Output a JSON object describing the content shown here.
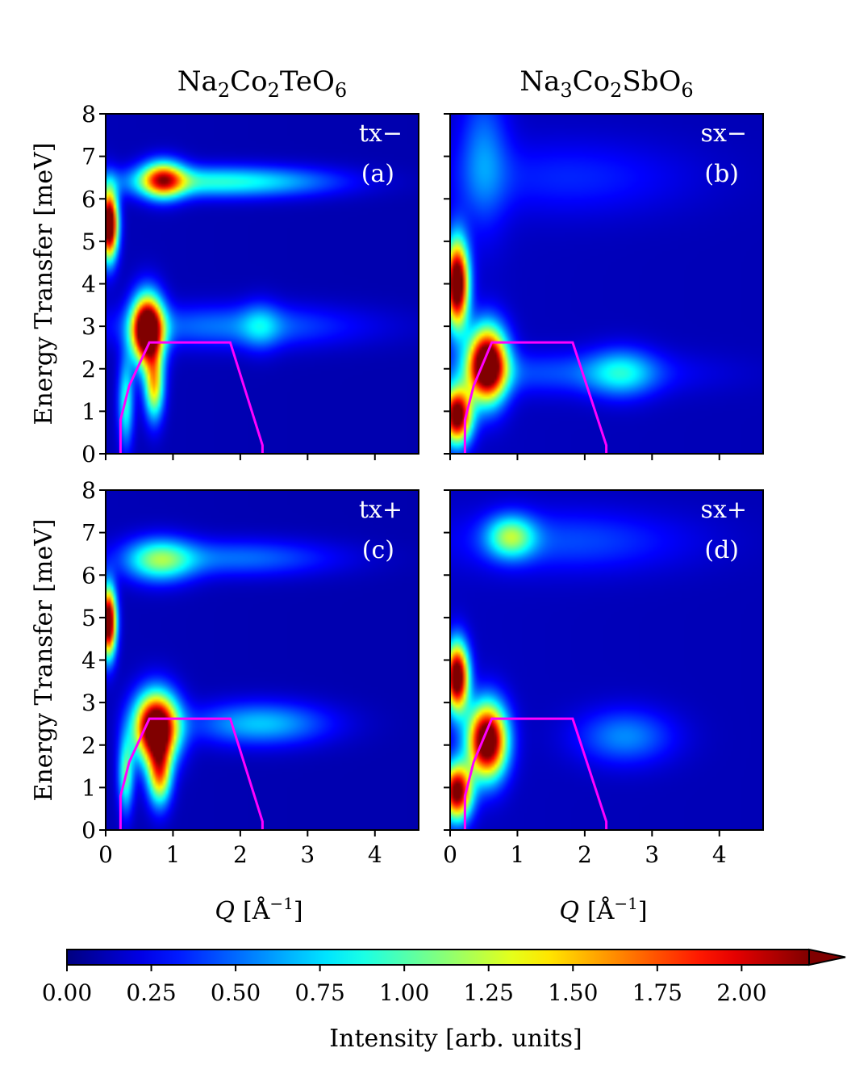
{
  "chart_data": [
    {
      "type": "heatmap",
      "panel_tag": "tx−",
      "panel_letter": "(a)",
      "xlim": [
        0,
        4.65
      ],
      "ylim": [
        0,
        8
      ],
      "x_ticks": [
        0,
        1,
        2,
        3,
        4
      ],
      "y_ticks": [
        0,
        1,
        2,
        3,
        4,
        5,
        6,
        7,
        8
      ],
      "features": [
        {
          "q": 0.05,
          "e": 5.4,
          "sq": 0.09,
          "se": 0.55,
          "amp": 2.6
        },
        {
          "q": 0.62,
          "e": 2.9,
          "sq": 0.16,
          "se": 0.55,
          "amp": 2.8
        },
        {
          "q": 0.72,
          "e": 1.6,
          "sq": 0.1,
          "se": 0.55,
          "amp": 1.3
        },
        {
          "q": 0.85,
          "e": 6.45,
          "sq": 0.22,
          "se": 0.3,
          "amp": 1.5
        },
        {
          "q": 1.2,
          "e": 6.4,
          "sq": 0.9,
          "se": 0.25,
          "amp": 0.55
        },
        {
          "q": 2.4,
          "e": 6.4,
          "sq": 0.9,
          "se": 0.25,
          "amp": 0.45
        },
        {
          "q": 1.9,
          "e": 3.0,
          "sq": 1.3,
          "se": 0.35,
          "amp": 0.42
        },
        {
          "q": 2.3,
          "e": 3.0,
          "sq": 0.2,
          "se": 0.4,
          "amp": 0.35
        },
        {
          "q": 0.3,
          "e": 1.2,
          "sq": 0.08,
          "se": 0.7,
          "amp": 0.8
        }
      ],
      "background": 0.12,
      "kinematic_limit": {
        "q": [
          0.22,
          0.22,
          0.35,
          0.65,
          1.85,
          2.33,
          2.33
        ],
        "e": [
          0.0,
          0.8,
          1.6,
          2.62,
          2.62,
          0.2,
          0.0
        ]
      }
    },
    {
      "type": "heatmap",
      "panel_tag": "sx−",
      "panel_letter": "(b)",
      "xlim": [
        0,
        4.65
      ],
      "ylim": [
        0,
        8
      ],
      "x_ticks": [
        0,
        1,
        2,
        3,
        4
      ],
      "y_ticks": [
        0,
        1,
        2,
        3,
        4,
        5,
        6,
        7,
        8
      ],
      "features": [
        {
          "q": 0.1,
          "e": 4.0,
          "sq": 0.12,
          "se": 0.7,
          "amp": 2.5
        },
        {
          "q": 0.55,
          "e": 2.1,
          "sq": 0.2,
          "se": 0.6,
          "amp": 2.6
        },
        {
          "q": 0.1,
          "e": 0.9,
          "sq": 0.15,
          "se": 0.45,
          "amp": 2.3
        },
        {
          "q": 2.55,
          "e": 1.9,
          "sq": 0.35,
          "se": 0.4,
          "amp": 0.55
        },
        {
          "q": 1.6,
          "e": 1.9,
          "sq": 1.4,
          "se": 0.35,
          "amp": 0.3
        },
        {
          "q": 0.5,
          "e": 7.0,
          "sq": 0.25,
          "se": 1.2,
          "amp": 0.4
        },
        {
          "q": 1.8,
          "e": 6.5,
          "sq": 1.2,
          "se": 0.6,
          "amp": 0.22
        }
      ],
      "background": 0.14,
      "kinematic_limit": {
        "q": [
          0.22,
          0.22,
          0.35,
          0.62,
          1.82,
          2.32,
          2.32
        ],
        "e": [
          0.0,
          0.8,
          1.6,
          2.62,
          2.62,
          0.2,
          0.0
        ]
      }
    },
    {
      "type": "heatmap",
      "panel_tag": "tx+",
      "panel_letter": "(c)",
      "xlim": [
        0,
        4.65
      ],
      "ylim": [
        0,
        8
      ],
      "x_ticks": [
        0,
        1,
        2,
        3,
        4
      ],
      "y_ticks": [
        0,
        1,
        2,
        3,
        4,
        5,
        6,
        7,
        8
      ],
      "features": [
        {
          "q": 0.04,
          "e": 4.9,
          "sq": 0.08,
          "se": 0.55,
          "amp": 2.5
        },
        {
          "q": 0.75,
          "e": 2.4,
          "sq": 0.22,
          "se": 0.55,
          "amp": 2.7
        },
        {
          "q": 0.8,
          "e": 1.3,
          "sq": 0.12,
          "se": 0.5,
          "amp": 1.4
        },
        {
          "q": 0.8,
          "e": 6.35,
          "sq": 0.35,
          "se": 0.35,
          "amp": 0.9
        },
        {
          "q": 2.0,
          "e": 6.4,
          "sq": 1.0,
          "se": 0.3,
          "amp": 0.4
        },
        {
          "q": 2.3,
          "e": 2.5,
          "sq": 0.7,
          "se": 0.35,
          "amp": 0.6
        },
        {
          "q": 0.3,
          "e": 1.3,
          "sq": 0.08,
          "se": 0.6,
          "amp": 0.9
        }
      ],
      "background": 0.12,
      "kinematic_limit": {
        "q": [
          0.22,
          0.22,
          0.35,
          0.65,
          1.85,
          2.33,
          2.33
        ],
        "e": [
          0.0,
          0.8,
          1.6,
          2.62,
          2.62,
          0.2,
          0.0
        ]
      }
    },
    {
      "type": "heatmap",
      "panel_tag": "sx+",
      "panel_letter": "(d)",
      "xlim": [
        0,
        4.65
      ],
      "ylim": [
        0,
        8
      ],
      "x_ticks": [
        0,
        1,
        2,
        3,
        4
      ],
      "y_ticks": [
        0,
        1,
        2,
        3,
        4,
        5,
        6,
        7,
        8
      ],
      "features": [
        {
          "q": 0.1,
          "e": 3.6,
          "sq": 0.12,
          "se": 0.55,
          "amp": 2.4
        },
        {
          "q": 0.55,
          "e": 2.1,
          "sq": 0.2,
          "se": 0.6,
          "amp": 2.5
        },
        {
          "q": 0.1,
          "e": 0.9,
          "sq": 0.15,
          "se": 0.45,
          "amp": 2.2
        },
        {
          "q": 0.9,
          "e": 6.9,
          "sq": 0.25,
          "se": 0.35,
          "amp": 0.9
        },
        {
          "q": 2.6,
          "e": 2.2,
          "sq": 0.5,
          "se": 0.45,
          "amp": 0.45
        },
        {
          "q": 1.8,
          "e": 6.8,
          "sq": 1.2,
          "se": 0.5,
          "amp": 0.3
        }
      ],
      "background": 0.14,
      "kinematic_limit": {
        "q": [
          0.22,
          0.22,
          0.35,
          0.62,
          1.82,
          2.32,
          2.32
        ],
        "e": [
          0.0,
          0.8,
          1.6,
          2.62,
          2.62,
          0.2,
          0.0
        ]
      }
    }
  ],
  "columns": [
    {
      "title_parts": [
        "Na",
        "2",
        "Co",
        "2",
        "TeO",
        "6"
      ]
    },
    {
      "title_parts": [
        "Na",
        "3",
        "Co",
        "2",
        "SbO",
        "6"
      ]
    }
  ],
  "axes": {
    "ylabel": "Energy Transfer [meV]",
    "xlabel_italic": "Q",
    "xlabel_unit": "[Å",
    "xlabel_sup": "−1",
    "xlabel_close": "]"
  },
  "colorbar": {
    "label": "Intensity [arb. units]",
    "range": [
      0,
      2.2
    ],
    "ticks": [
      0.0,
      0.25,
      0.5,
      0.75,
      1.0,
      1.25,
      1.5,
      1.75,
      2.0
    ],
    "colormap": "jet",
    "extend": "max"
  },
  "colors": {
    "kinematic_line": "#ff00ff"
  }
}
